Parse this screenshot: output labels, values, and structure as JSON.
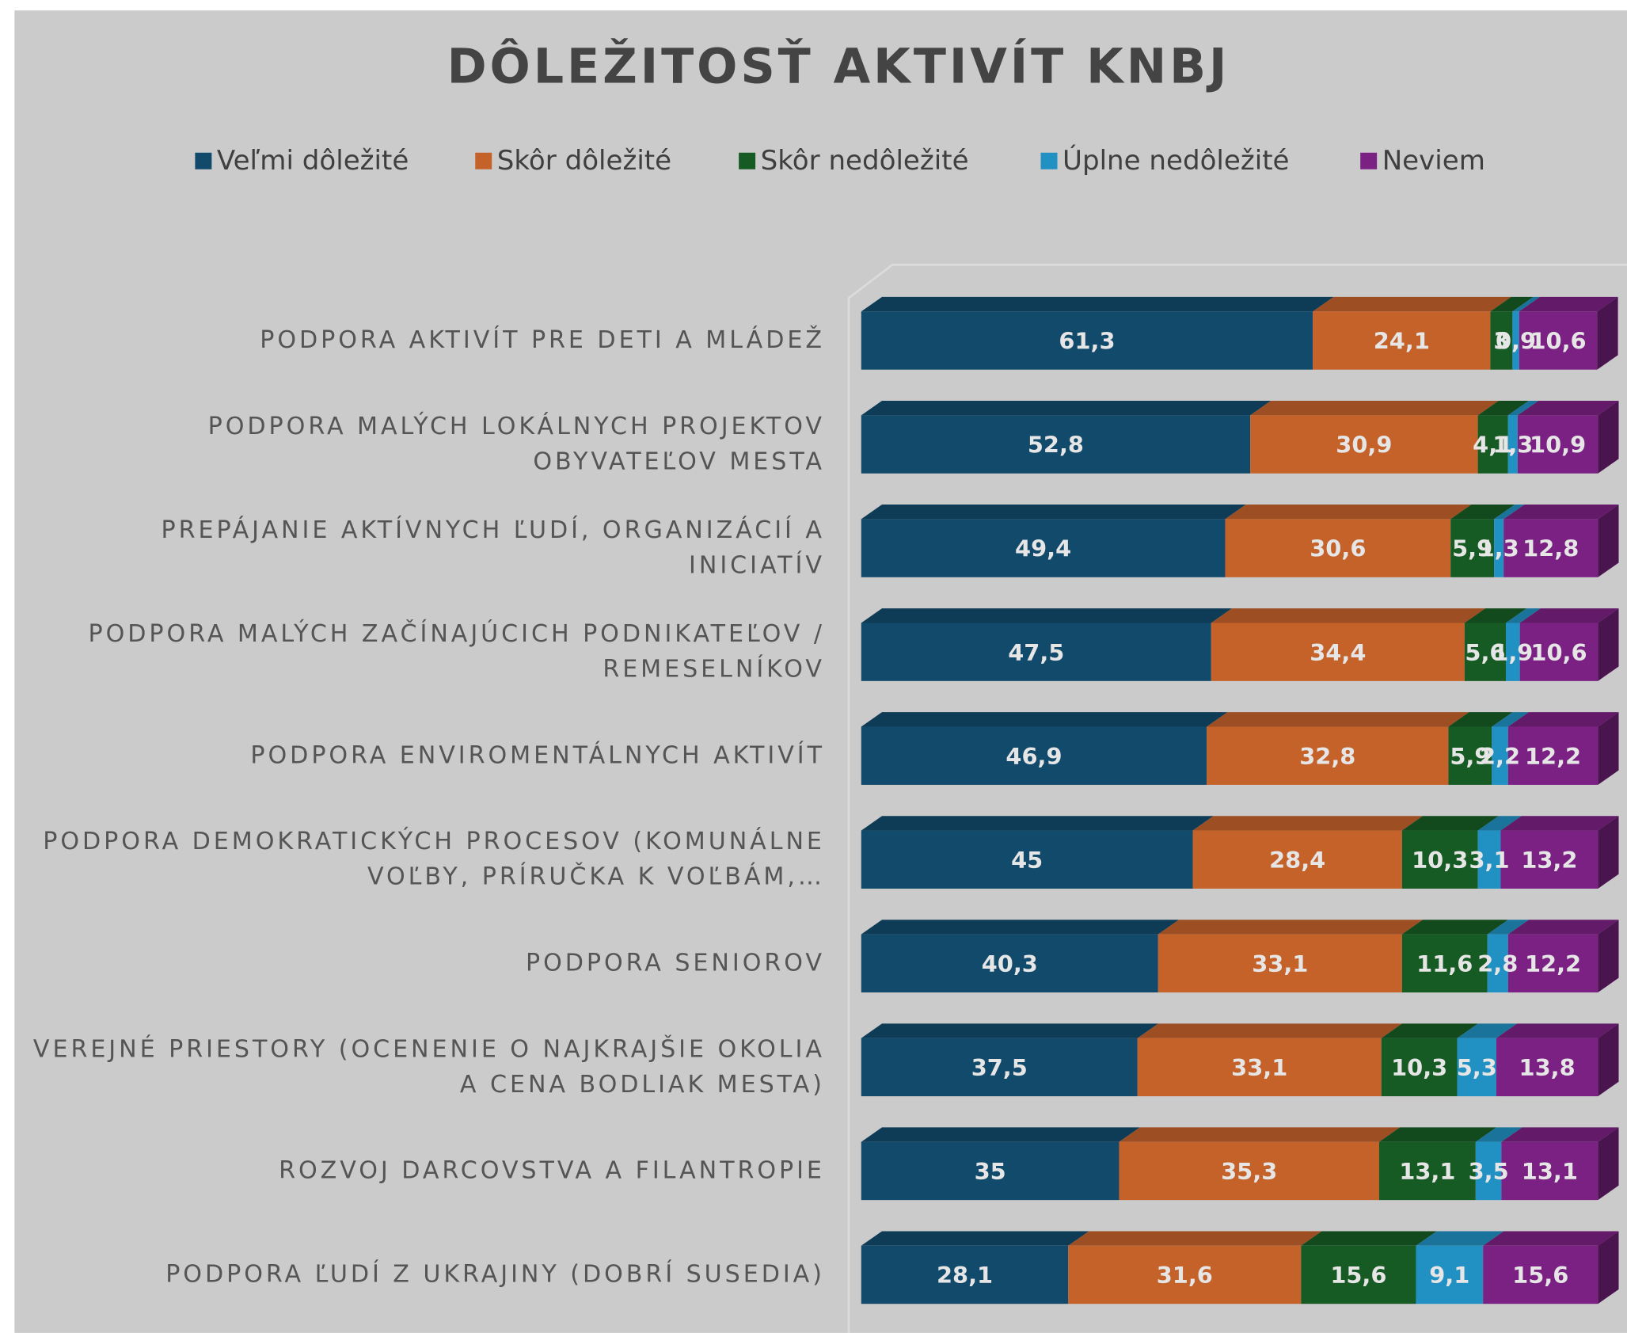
{
  "chart_data": {
    "type": "stacked-bar-3d-horizontal",
    "title": "DÔLEŽITOSŤ AKTIVÍT KNBJ",
    "categories": [
      "PODPORA AKTIVÍT PRE DETI A MLÁDEŽ",
      "PODPORA MALÝCH LOKÁLNYCH PROJEKTOV OBYVATEĽOV MESTA",
      "PREPÁJANIE AKTÍVNYCH ĽUDÍ, ORGANIZÁCIÍ A INICIATÍV",
      "PODPORA MALÝCH ZAČÍNAJÚCICH PODNIKATEĽOV / REMESELNÍKOV",
      "PODPORA ENVIROMENTÁLNYCH AKTIVÍT",
      "PODPORA DEMOKRATICKÝCH PROCESOV (KOMUNÁLNE VOĽBY, PRÍRUČKA K VOĽBÁM,…",
      "PODPORA SENIOROV",
      "VEREJNÉ PRIESTORY (OCENENIE O NAJKRAJŠIE OKOLIA A CENA BODLIAK MESTA)",
      "ROZVOJ DARCOVSTVA A FILANTROPIE",
      "PODPORA ĽUDÍ Z UKRAJINY (DOBRÍ SUSEDIA)"
    ],
    "series": [
      {
        "name": "Veľmi dôležité",
        "color": "#124a6b",
        "values": [
          61.3,
          52.8,
          49.4,
          47.5,
          46.9,
          45,
          40.3,
          37.5,
          35,
          28.1
        ],
        "value_labels": [
          "61,3",
          "52,8",
          "49,4",
          "47,5",
          "46,9",
          "45",
          "40,3",
          "37,5",
          "35",
          "28,1"
        ]
      },
      {
        "name": "Skôr dôležité",
        "color": "#c4622a",
        "values": [
          24.1,
          30.9,
          30.6,
          34.4,
          32.8,
          28.4,
          33.1,
          33.1,
          35.3,
          31.6
        ],
        "value_labels": [
          "24,1",
          "30,9",
          "30,6",
          "34,4",
          "32,8",
          "28,4",
          "33,1",
          "33,1",
          "35,3",
          "31,6"
        ]
      },
      {
        "name": "Skôr nedôležité",
        "color": "#175b24",
        "values": [
          3,
          4.1,
          5.9,
          5.6,
          5.9,
          10.3,
          11.6,
          10.3,
          13.1,
          15.6
        ],
        "value_labels": [
          "3",
          "4,1",
          "5,9",
          "5,6",
          "5,9",
          "10,3",
          "11,6",
          "10,3",
          "13,1",
          "15,6"
        ]
      },
      {
        "name": "Úplne nedôležité",
        "color": "#2190c2",
        "values": [
          0.9,
          1.3,
          1.3,
          1.9,
          2.2,
          3.1,
          2.8,
          5.3,
          3.5,
          9.1
        ],
        "value_labels": [
          "0,9",
          "1,3",
          "1,3",
          "1,9",
          "2,2",
          "3,1",
          "2,8",
          "5,3",
          "3,5",
          "9,1"
        ]
      },
      {
        "name": "Neviem",
        "color": "#7b2183",
        "values": [
          10.6,
          10.9,
          12.8,
          10.6,
          12.2,
          13.2,
          12.2,
          13.8,
          13.1,
          15.6
        ],
        "value_labels": [
          "10,6",
          "10,9",
          "12,8",
          "10,6",
          "12,2",
          "13,2",
          "12,2",
          "13,8",
          "13,1",
          "15,6"
        ]
      }
    ],
    "xlim": [
      0,
      100
    ],
    "legend": "top"
  }
}
